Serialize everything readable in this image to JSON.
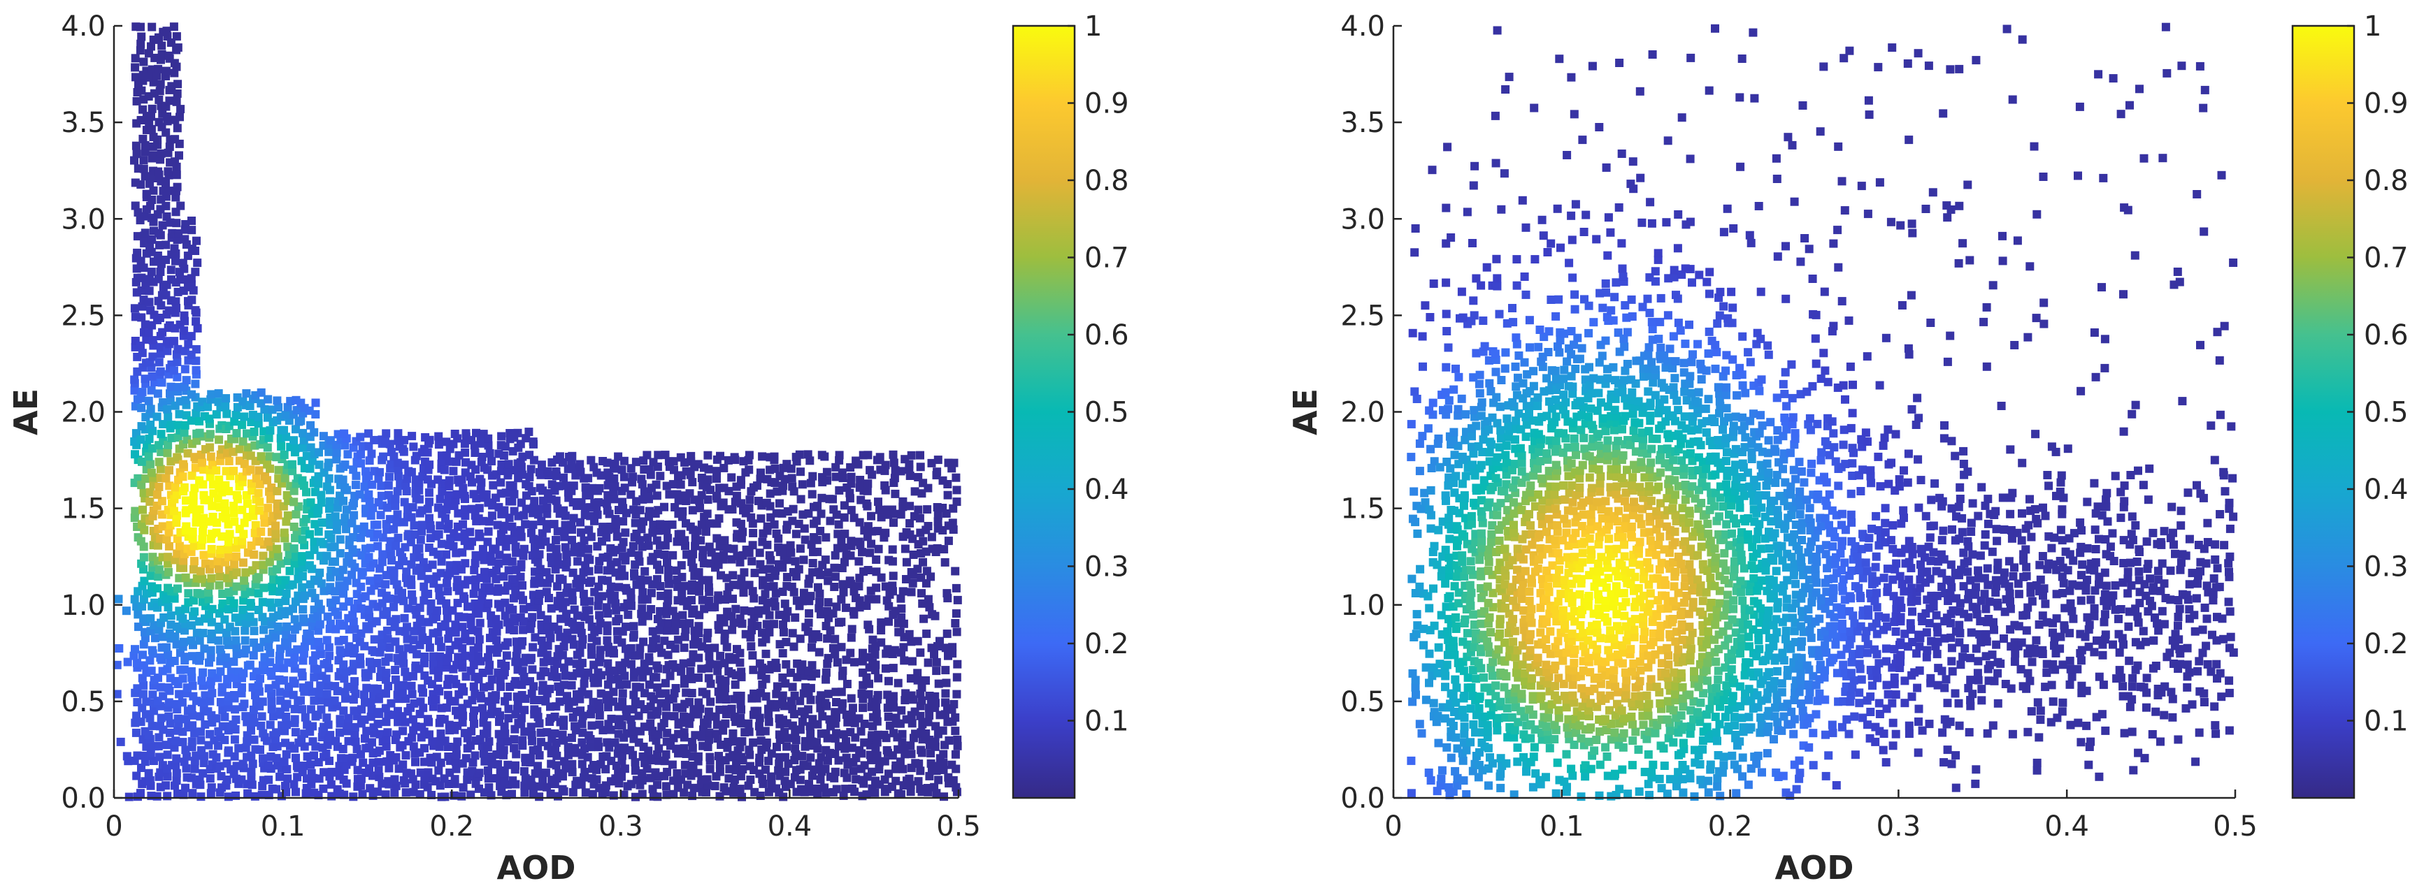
{
  "chart_data": [
    {
      "type": "scatter",
      "title": "",
      "xlabel": "AOD",
      "ylabel": "AE",
      "xlim": [
        0,
        0.5
      ],
      "ylim": [
        0,
        4
      ],
      "xticks": [
        "0",
        "0.1",
        "0.2",
        "0.3",
        "0.4",
        "0.5"
      ],
      "xtick_values": [
        0,
        0.1,
        0.2,
        0.3,
        0.4,
        0.5
      ],
      "yticks": [
        "0.0",
        "0.5",
        "1.0",
        "1.5",
        "2.0",
        "2.5",
        "3.0",
        "3.5",
        "4.0"
      ],
      "ytick_values": [
        0,
        0.5,
        1,
        1.5,
        2,
        2.5,
        3,
        3.5,
        4
      ],
      "colorbar": {
        "range": [
          0,
          1
        ],
        "ticks": [
          "0.1",
          "0.2",
          "0.3",
          "0.4",
          "0.5",
          "0.6",
          "0.7",
          "0.8",
          "0.9",
          "1"
        ],
        "tick_values": [
          0.1,
          0.2,
          0.3,
          0.4,
          0.5,
          0.6,
          0.7,
          0.8,
          0.9,
          1
        ]
      },
      "density_peak": {
        "aod": 0.06,
        "ae": 1.5,
        "aod_spread": 0.04,
        "ae_spread": 0.33
      },
      "grid": false,
      "seed": 7
    },
    {
      "type": "scatter",
      "title": "",
      "xlabel": "AOD",
      "ylabel": "AE",
      "xlim": [
        0,
        0.5
      ],
      "ylim": [
        0,
        4
      ],
      "xticks": [
        "0",
        "0.1",
        "0.2",
        "0.3",
        "0.4",
        "0.5"
      ],
      "xtick_values": [
        0,
        0.1,
        0.2,
        0.3,
        0.4,
        0.5
      ],
      "yticks": [
        "0.0",
        "0.5",
        "1.0",
        "1.5",
        "2.0",
        "2.5",
        "3.0",
        "3.5",
        "4.0"
      ],
      "ytick_values": [
        0,
        0.5,
        1,
        1.5,
        2,
        2.5,
        3,
        3.5,
        4
      ],
      "colorbar": {
        "range": [
          0,
          1
        ],
        "ticks": [
          "0.1",
          "0.2",
          "0.3",
          "0.4",
          "0.5",
          "0.6",
          "0.7",
          "0.8",
          "0.9",
          "1"
        ],
        "tick_values": [
          0.1,
          0.2,
          0.3,
          0.4,
          0.5,
          0.6,
          0.7,
          0.8,
          0.9,
          1
        ]
      },
      "density_peak": {
        "aod": 0.125,
        "ae": 1.05,
        "aod_spread": 0.075,
        "ae_spread": 0.75
      },
      "grid": false,
      "seed": 11
    }
  ],
  "colormap": [
    "#352a87",
    "#3b3fc9",
    "#3d6af5",
    "#2a8ce2",
    "#17a8cf",
    "#08b9b4",
    "#45c18f",
    "#9dbe3f",
    "#e2b437",
    "#fcc92f",
    "#f9fb0e"
  ]
}
